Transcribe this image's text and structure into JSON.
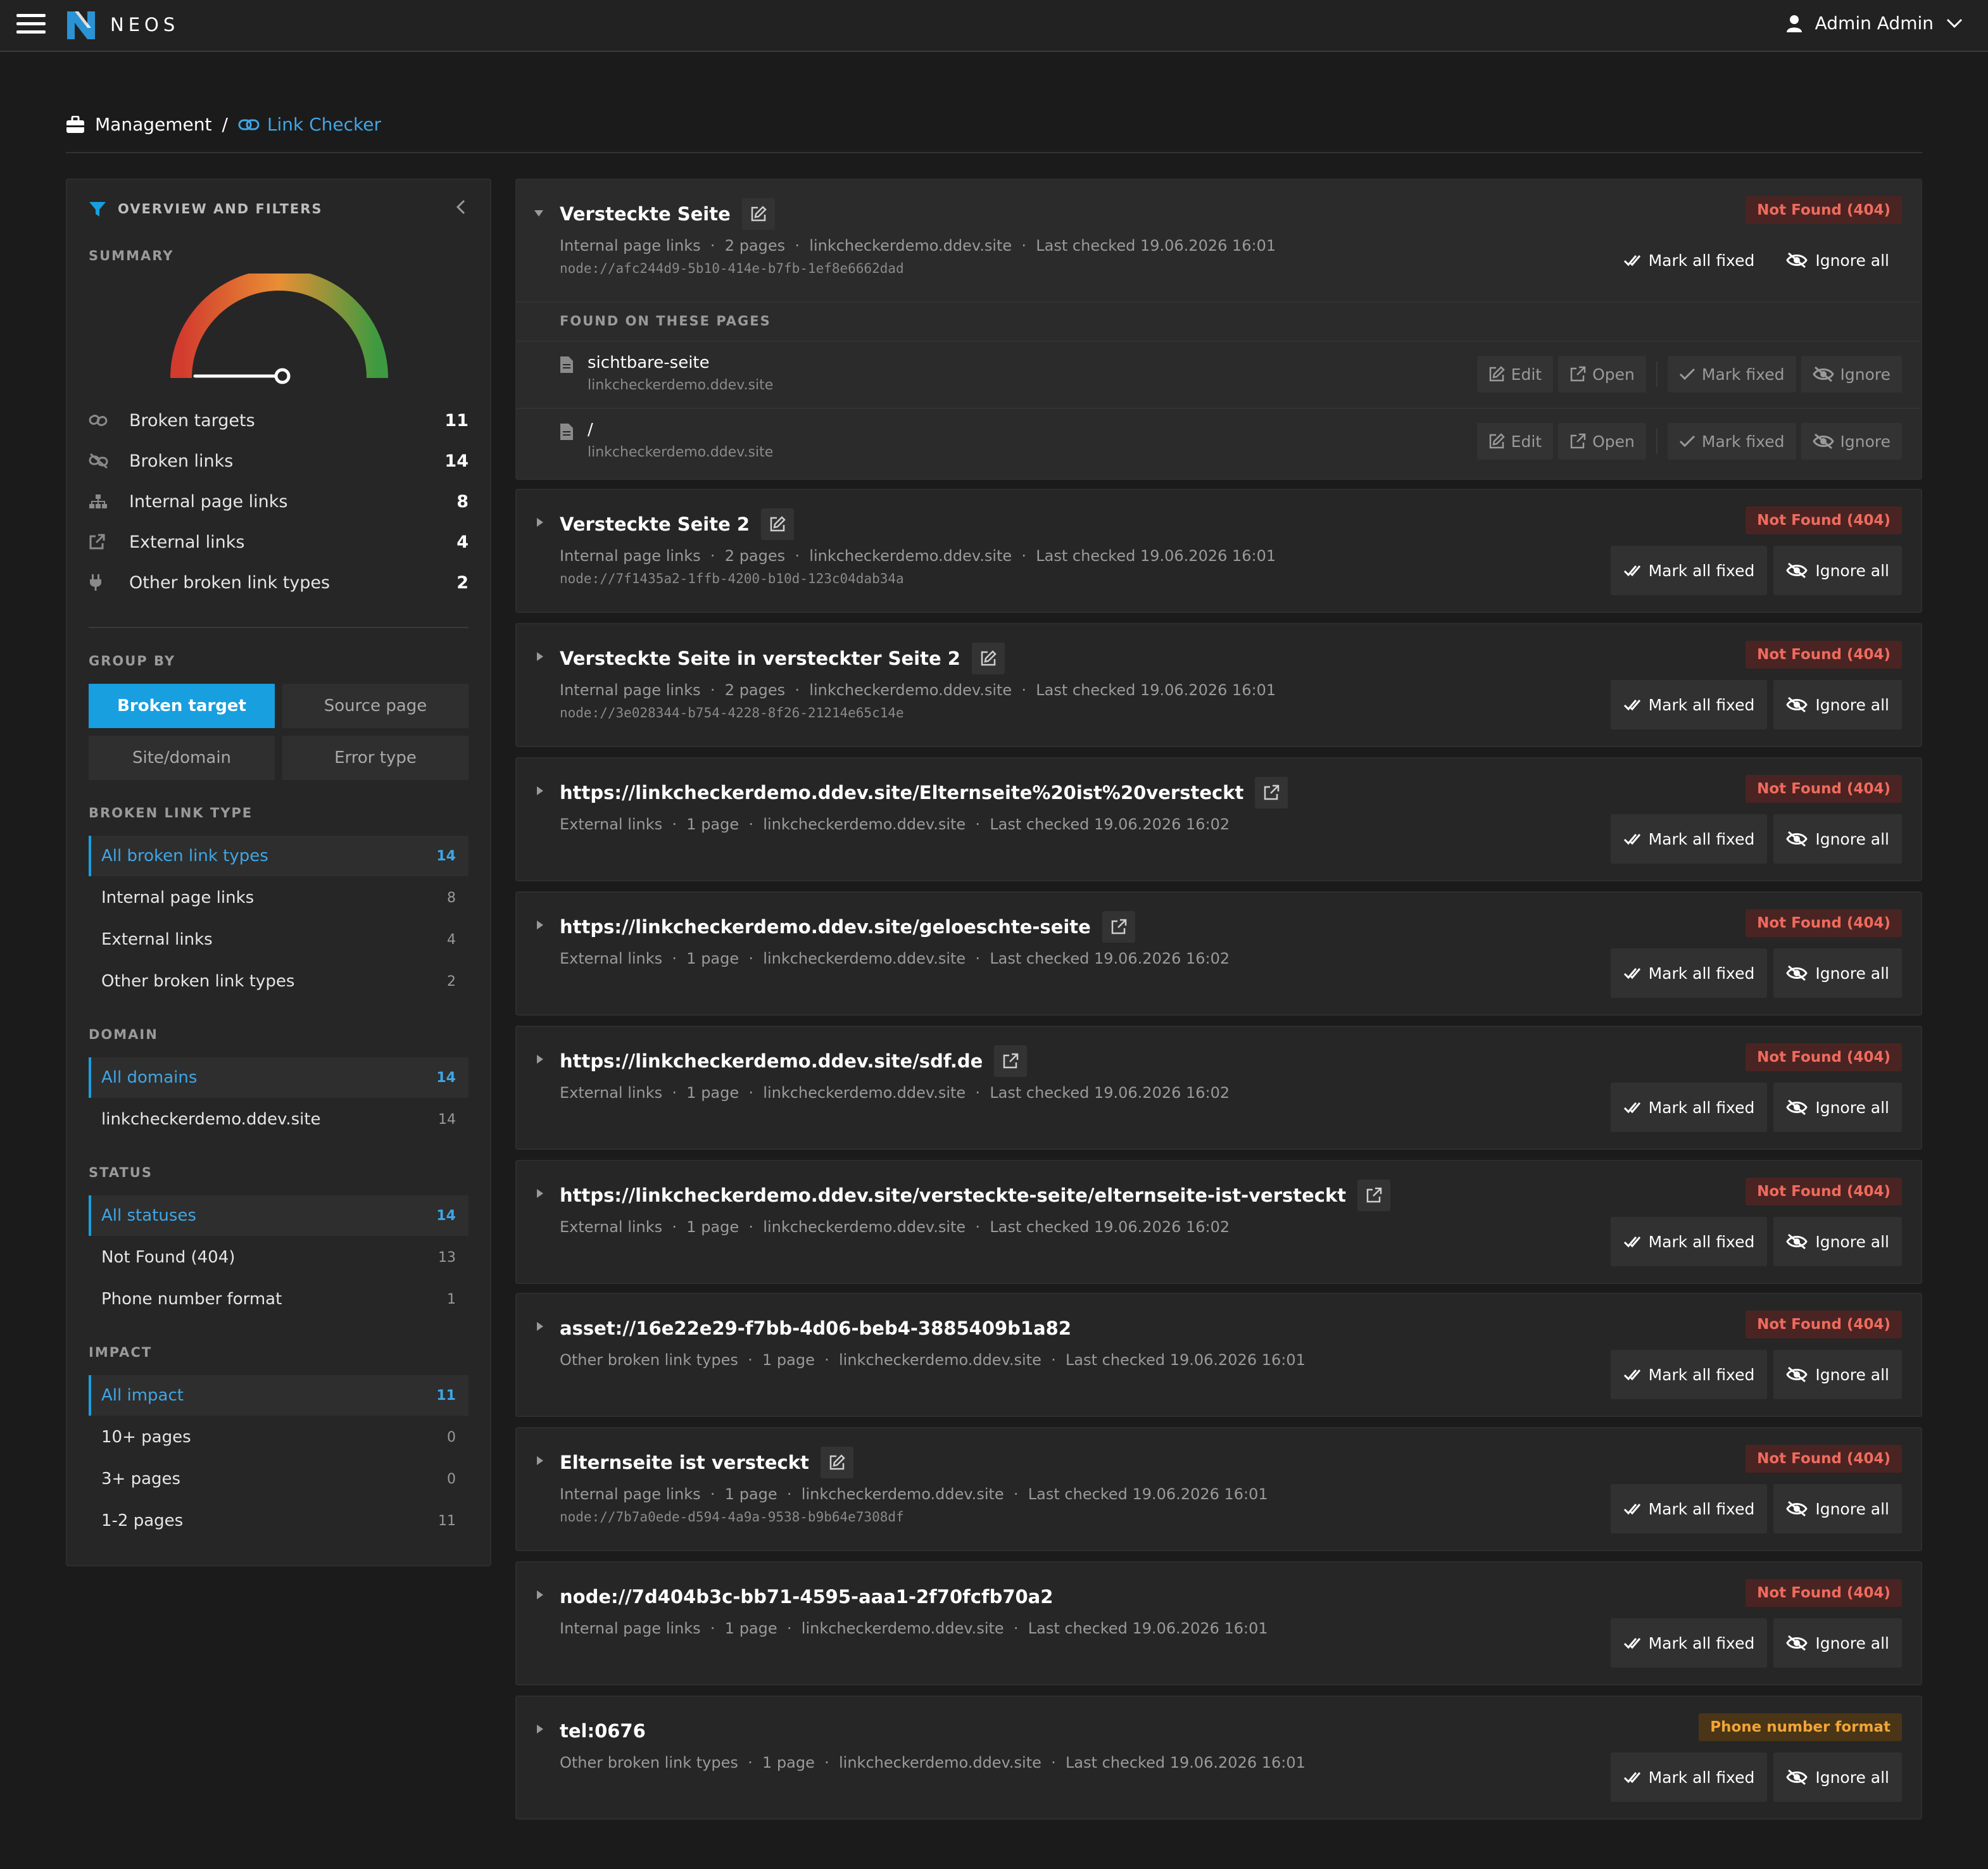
{
  "topbar": {
    "brand": "NEOS",
    "user_name": "Admin Admin"
  },
  "breadcrumb": {
    "parent": "Management",
    "separator": "/",
    "current": "Link Checker"
  },
  "sidebar": {
    "header": "OVERVIEW AND FILTERS",
    "summary_label": "SUMMARY",
    "summary": [
      {
        "icon": "broken-link-icon",
        "label": "Broken targets",
        "value": "11"
      },
      {
        "icon": "unlink-icon",
        "label": "Broken links",
        "value": "14"
      },
      {
        "icon": "sitemap-icon",
        "label": "Internal page links",
        "value": "8"
      },
      {
        "icon": "external-link-icon",
        "label": "External links",
        "value": "4"
      },
      {
        "icon": "plug-icon",
        "label": "Other broken link types",
        "value": "2"
      }
    ],
    "group_by_label": "GROUP BY",
    "group_by": [
      "Broken target",
      "Source page",
      "Site/domain",
      "Error type"
    ],
    "broken_link_type_label": "BROKEN LINK TYPE",
    "broken_link_types": [
      {
        "label": "All broken link types",
        "count": "14"
      },
      {
        "label": "Internal page links",
        "count": "8"
      },
      {
        "label": "External links",
        "count": "4"
      },
      {
        "label": "Other broken link types",
        "count": "2"
      }
    ],
    "domain_label": "DOMAIN",
    "domains": [
      {
        "label": "All domains",
        "count": "14"
      },
      {
        "label": "linkcheckerdemo.ddev.site",
        "count": "14"
      }
    ],
    "status_label": "STATUS",
    "statuses": [
      {
        "label": "All statuses",
        "count": "14"
      },
      {
        "label": "Not Found (404)",
        "count": "13"
      },
      {
        "label": "Phone number format",
        "count": "1"
      }
    ],
    "impact_label": "IMPACT",
    "impacts": [
      {
        "label": "All impact",
        "count": "11"
      },
      {
        "label": "10+ pages",
        "count": "0"
      },
      {
        "label": "3+ pages",
        "count": "0"
      },
      {
        "label": "1-2 pages",
        "count": "11"
      }
    ]
  },
  "actions": {
    "mark_all_fixed": "Mark all fixed",
    "ignore_all": "Ignore all",
    "edit": "Edit",
    "open": "Open",
    "mark_fixed": "Mark fixed",
    "ignore": "Ignore",
    "found_on": "FOUND ON THESE PAGES"
  },
  "cards": [
    {
      "title": "Versteckte Seite",
      "title_icon": "edit-icon",
      "meta": "Internal page links  ·  2 pages  ·  linkcheckerdemo.ddev.site  ·  Last checked 19.06.2026 16:01",
      "node": "node://afc244d9-5b10-414e-b7fb-1ef8e6662dad",
      "badge": "Not Found (404)",
      "pages": [
        {
          "name": "sichtbare-seite",
          "domain": "linkcheckerdemo.ddev.site"
        },
        {
          "name": "/",
          "domain": "linkcheckerdemo.ddev.site"
        }
      ]
    },
    {
      "title": "Versteckte Seite 2",
      "title_icon": "edit-icon",
      "meta": "Internal page links  ·  2 pages  ·  linkcheckerdemo.ddev.site  ·  Last checked 19.06.2026 16:01",
      "node": "node://7f1435a2-1ffb-4200-b10d-123c04dab34a",
      "badge": "Not Found (404)"
    },
    {
      "title": "Versteckte Seite in versteckter Seite 2",
      "title_icon": "edit-icon",
      "meta": "Internal page links  ·  2 pages  ·  linkcheckerdemo.ddev.site  ·  Last checked 19.06.2026 16:01",
      "node": "node://3e028344-b754-4228-8f26-21214e65c14e",
      "badge": "Not Found (404)"
    },
    {
      "title": "https://linkcheckerdemo.ddev.site/Elternseite%20ist%20versteckt",
      "title_icon": "external-link-icon",
      "meta": "External links  ·  1 page  ·  linkcheckerdemo.ddev.site  ·  Last checked 19.06.2026 16:02",
      "badge": "Not Found (404)"
    },
    {
      "title": "https://linkcheckerdemo.ddev.site/geloeschte-seite",
      "title_icon": "external-link-icon",
      "meta": "External links  ·  1 page  ·  linkcheckerdemo.ddev.site  ·  Last checked 19.06.2026 16:02",
      "badge": "Not Found (404)"
    },
    {
      "title": "https://linkcheckerdemo.ddev.site/sdf.de",
      "title_icon": "external-link-icon",
      "meta": "External links  ·  1 page  ·  linkcheckerdemo.ddev.site  ·  Last checked 19.06.2026 16:02",
      "badge": "Not Found (404)"
    },
    {
      "title": "https://linkcheckerdemo.ddev.site/versteckte-seite/elternseite-ist-versteckt",
      "title_icon": "external-link-icon",
      "meta": "External links  ·  1 page  ·  linkcheckerdemo.ddev.site  ·  Last checked 19.06.2026 16:02",
      "badge": "Not Found (404)"
    },
    {
      "title": "asset://16e22e29-f7bb-4d06-beb4-3885409b1a82",
      "meta": "Other broken link types  ·  1 page  ·  linkcheckerdemo.ddev.site  ·  Last checked 19.06.2026 16:01",
      "badge": "Not Found (404)"
    },
    {
      "title": "Elternseite ist versteckt",
      "title_icon": "edit-icon",
      "meta": "Internal page links  ·  1 page  ·  linkcheckerdemo.ddev.site  ·  Last checked 19.06.2026 16:01",
      "node": "node://7b7a0ede-d594-4a9a-9538-b9b64e7308df",
      "badge": "Not Found (404)"
    },
    {
      "title": "node://7d404b3c-bb71-4595-aaa1-2f70fcfb70a2",
      "meta": "Internal page links  ·  1 page  ·  linkcheckerdemo.ddev.site  ·  Last checked 19.06.2026 16:01",
      "badge": "Not Found (404)"
    },
    {
      "title": "tel:0676",
      "meta": "Other broken link types  ·  1 page  ·  linkcheckerdemo.ddev.site  ·  Last checked 19.06.2026 16:01",
      "badge": "Phone number format"
    }
  ],
  "colors": {
    "accent": "#179fe0",
    "danger": "#ef6b5e",
    "warning": "#f0a537"
  }
}
